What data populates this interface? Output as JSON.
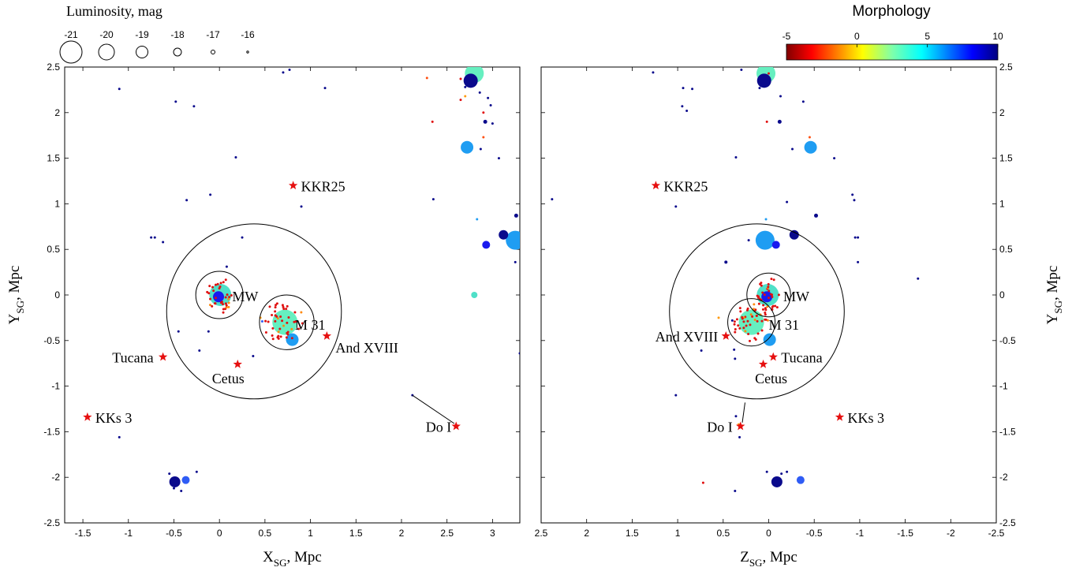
{
  "header": {
    "luminosity_title": "Luminosity, mag",
    "luminosity_legend": [
      "-21",
      "-20",
      "-19",
      "-18",
      "-17",
      "-16"
    ],
    "colorbar_title": "Morphology",
    "colorbar_ticks": [
      "-5",
      "0",
      "5",
      "10"
    ],
    "colorbar_range": [
      -5,
      10
    ]
  },
  "chart_data": [
    {
      "type": "scatter",
      "xlabel_main": "X",
      "xlabel_sub": "SG",
      "xlabel_unit": ", Mpc",
      "ylabel_main": "Y",
      "ylabel_sub": "SG",
      "ylabel_unit": ", Mpc",
      "xlim": [
        -1.7,
        3.3
      ],
      "ylim": [
        -2.5,
        2.5
      ],
      "xticks": [
        -1.5,
        -1,
        -0.5,
        0,
        0.5,
        1,
        1.5,
        2,
        2.5,
        3
      ],
      "xtick_labels": [
        "-1.5",
        "-1",
        "-0.5",
        "0",
        "0.5",
        "1",
        "1.5",
        "2",
        "2.5",
        "3"
      ],
      "yticks": [
        2.5,
        2,
        1.5,
        1,
        0.5,
        0,
        -0.5,
        -1,
        -1.5,
        -2,
        -2.5
      ],
      "ytick_labels": [
        "2.5",
        "2",
        "1.5",
        "1",
        "0.5",
        "0",
        "-0.5",
        "-1",
        "-1.5",
        "-2",
        "-2.5"
      ],
      "circles": [
        {
          "cx": 0.38,
          "cy": -0.18,
          "r": 0.96
        },
        {
          "cx": 0.0,
          "cy": 0.0,
          "r": 0.26
        },
        {
          "cx": 0.74,
          "cy": -0.3,
          "r": 0.3
        }
      ],
      "stars": [
        {
          "label": "KKR25",
          "x": 0.81,
          "y": 1.2
        },
        {
          "label": "Tucana",
          "x": -0.62,
          "y": -0.68
        },
        {
          "label": "Cetus",
          "x": 0.2,
          "y": -0.76
        },
        {
          "label": "And XVIII",
          "x": 1.18,
          "y": -0.45
        },
        {
          "label": "KKs 3",
          "x": -1.45,
          "y": -1.34
        },
        {
          "label": "Do I",
          "x": 2.6,
          "y": -1.44
        }
      ],
      "labels": [
        {
          "text": "MW",
          "x": 0.14,
          "y": -0.01
        },
        {
          "text": "M 31",
          "x": 0.83,
          "y": -0.32
        }
      ],
      "points": [
        {
          "x": 0.01,
          "y": 0.0,
          "m": 4,
          "size": 14
        },
        {
          "x": -0.01,
          "y": -0.02,
          "m": 9,
          "size": 7
        },
        {
          "x": 0.72,
          "y": -0.3,
          "m": 3,
          "size": 16
        },
        {
          "x": 0.8,
          "y": -0.49,
          "m": 7,
          "size": 8
        },
        {
          "x": 2.8,
          "y": 2.43,
          "m": 3,
          "size": 12
        },
        {
          "x": 2.76,
          "y": 2.35,
          "m": 10,
          "size": 9
        },
        {
          "x": 2.72,
          "y": 1.62,
          "m": 7,
          "size": 8
        },
        {
          "x": 3.25,
          "y": 0.6,
          "m": 7,
          "size": 12
        },
        {
          "x": 3.12,
          "y": 0.66,
          "m": 10,
          "size": 6
        },
        {
          "x": 2.93,
          "y": 0.55,
          "m": 9,
          "size": 5
        },
        {
          "x": 2.8,
          "y": 0.0,
          "m": 4,
          "size": 4
        },
        {
          "x": -0.49,
          "y": -2.05,
          "m": 10,
          "size": 7
        },
        {
          "x": -0.37,
          "y": -2.03,
          "m": 8,
          "size": 5
        },
        {
          "x": -1.1,
          "y": 2.26,
          "m": 10,
          "size": 1.5
        },
        {
          "x": -0.48,
          "y": 2.12,
          "m": 10,
          "size": 1.5
        },
        {
          "x": -0.28,
          "y": 2.07,
          "m": 10,
          "size": 1.5
        },
        {
          "x": 0.7,
          "y": 2.44,
          "m": 10,
          "size": 1.5
        },
        {
          "x": 0.77,
          "y": 2.47,
          "m": 10,
          "size": 1.5
        },
        {
          "x": 1.16,
          "y": 2.27,
          "m": 10,
          "size": 1.5
        },
        {
          "x": 0.18,
          "y": 1.51,
          "m": 10,
          "size": 1.5
        },
        {
          "x": -0.36,
          "y": 1.04,
          "m": 10,
          "size": 1.5
        },
        {
          "x": -0.1,
          "y": 1.1,
          "m": 10,
          "size": 1.5
        },
        {
          "x": 0.9,
          "y": 0.97,
          "m": 10,
          "size": 1.5
        },
        {
          "x": -0.75,
          "y": 0.63,
          "m": 10,
          "size": 1.5
        },
        {
          "x": -0.71,
          "y": 0.63,
          "m": 10,
          "size": 1.5
        },
        {
          "x": -0.62,
          "y": 0.58,
          "m": 10,
          "size": 1.5
        },
        {
          "x": 0.25,
          "y": 0.63,
          "m": 10,
          "size": 1.5
        },
        {
          "x": 0.08,
          "y": 0.31,
          "m": 10,
          "size": 1.5
        },
        {
          "x": -0.45,
          "y": -0.4,
          "m": 10,
          "size": 1.5
        },
        {
          "x": -0.12,
          "y": -0.4,
          "m": 10,
          "size": 1.5
        },
        {
          "x": -0.22,
          "y": -0.61,
          "m": 10,
          "size": 1.5
        },
        {
          "x": 0.37,
          "y": -0.67,
          "m": 10,
          "size": 1.5
        },
        {
          "x": 0.47,
          "y": -0.29,
          "m": 8,
          "size": 1.5
        },
        {
          "x": 0.45,
          "y": -0.25,
          "m": 0,
          "size": 1.5
        },
        {
          "x": -1.1,
          "y": -1.56,
          "m": 10,
          "size": 1.5
        },
        {
          "x": -0.55,
          "y": -1.96,
          "m": 10,
          "size": 1.5
        },
        {
          "x": -0.5,
          "y": -2.12,
          "m": 10,
          "size": 1.5
        },
        {
          "x": -0.42,
          "y": -2.15,
          "m": 10,
          "size": 1.5
        },
        {
          "x": -0.25,
          "y": -1.94,
          "m": 10,
          "size": 1.5
        },
        {
          "x": 2.12,
          "y": -1.1,
          "m": 10,
          "size": 1.5
        },
        {
          "x": 2.35,
          "y": 1.05,
          "m": 10,
          "size": 1.5
        },
        {
          "x": 2.28,
          "y": 2.38,
          "m": -2,
          "size": 1.5
        },
        {
          "x": 2.34,
          "y": 1.9,
          "m": -4,
          "size": 1.5
        },
        {
          "x": 2.65,
          "y": 2.37,
          "m": -4,
          "size": 1.5
        },
        {
          "x": 2.7,
          "y": 2.28,
          "m": 10,
          "size": 1.5
        },
        {
          "x": 2.65,
          "y": 2.14,
          "m": -4,
          "size": 1.5
        },
        {
          "x": 2.7,
          "y": 2.18,
          "m": 0,
          "size": 1.5
        },
        {
          "x": 2.86,
          "y": 2.22,
          "m": 10,
          "size": 1.5
        },
        {
          "x": 2.95,
          "y": 2.16,
          "m": 10,
          "size": 1.5
        },
        {
          "x": 2.98,
          "y": 2.08,
          "m": 10,
          "size": 1.5
        },
        {
          "x": 2.9,
          "y": 2.0,
          "m": -4,
          "size": 1.5
        },
        {
          "x": 2.92,
          "y": 1.9,
          "m": 10,
          "size": 2.5
        },
        {
          "x": 2.9,
          "y": 1.73,
          "m": -3,
          "size": 1.5
        },
        {
          "x": 3.0,
          "y": 1.88,
          "m": 10,
          "size": 1.5
        },
        {
          "x": 3.07,
          "y": 1.5,
          "m": 10,
          "size": 1.5
        },
        {
          "x": 2.87,
          "y": 1.6,
          "m": 10,
          "size": 1.5
        },
        {
          "x": 2.83,
          "y": 0.83,
          "m": 7,
          "size": 1.5
        },
        {
          "x": 3.26,
          "y": 0.87,
          "m": 10,
          "size": 2.5
        },
        {
          "x": 3.25,
          "y": 0.36,
          "m": 10,
          "size": 1.5
        },
        {
          "x": 3.3,
          "y": -0.64,
          "m": 10,
          "size": 1.5
        }
      ],
      "satellite_clusters": [
        {
          "cx": 0.0,
          "cy": 0.0,
          "rx": 0.16,
          "ry": 0.2,
          "count": 34,
          "m": -5
        },
        {
          "cx": 0.7,
          "cy": -0.3,
          "rx": 0.24,
          "ry": 0.22,
          "count": 44,
          "m": -5
        }
      ],
      "connectors": [
        {
          "x1": 2.12,
          "y1": -1.1,
          "x2": 2.58,
          "y2": -1.41
        }
      ]
    },
    {
      "type": "scatter",
      "xlabel_main": "Z",
      "xlabel_sub": "SG",
      "xlabel_unit": ", Mpc",
      "ylabel_main": "Y",
      "ylabel_sub": "SG",
      "ylabel_unit": ", Mpc",
      "xlim": [
        2.5,
        -2.5
      ],
      "ylim": [
        -2.5,
        2.5
      ],
      "xticks": [
        2.5,
        2,
        1.5,
        1,
        0.5,
        0,
        -0.5,
        -1,
        -1.5,
        -2,
        -2.5
      ],
      "xtick_labels": [
        "2.5",
        "2",
        "1.5",
        "1",
        "0.5",
        "0",
        "-0.5",
        "-1",
        "-1.5",
        "-2",
        "-2.5"
      ],
      "yticks": [
        2.5,
        2,
        1.5,
        1,
        0.5,
        0,
        -0.5,
        -1,
        -1.5,
        -2,
        -2.5
      ],
      "ytick_labels": [
        "2.5",
        "2",
        "1.5",
        "1",
        "0.5",
        "0",
        "-0.5",
        "-1",
        "-1.5",
        "-2",
        "-2.5"
      ],
      "circles": [
        {
          "cx": 0.13,
          "cy": -0.18,
          "r": 0.96
        },
        {
          "cx": 0.0,
          "cy": 0.0,
          "r": 0.24
        },
        {
          "cx": 0.19,
          "cy": -0.3,
          "r": 0.26
        }
      ],
      "stars": [
        {
          "label": "KKR25",
          "x": 1.24,
          "y": 1.2
        },
        {
          "label": "Tucana",
          "x": -0.05,
          "y": -0.68
        },
        {
          "label": "Cetus",
          "x": 0.06,
          "y": -0.76
        },
        {
          "label": "And XVIII",
          "x": 0.47,
          "y": -0.45
        },
        {
          "label": "KKs 3",
          "x": -0.78,
          "y": -1.34
        },
        {
          "label": "Do I",
          "x": 0.31,
          "y": -1.44
        }
      ],
      "labels": [
        {
          "text": "MW",
          "x": -0.16,
          "y": -0.01
        },
        {
          "text": "M 31",
          "x": 0.0,
          "y": -0.32
        }
      ],
      "points": [
        {
          "x": 0.01,
          "y": 0.0,
          "m": 4,
          "size": 14
        },
        {
          "x": 0.02,
          "y": -0.02,
          "m": 9,
          "size": 7
        },
        {
          "x": 0.19,
          "y": -0.3,
          "m": 3,
          "size": 16
        },
        {
          "x": -0.01,
          "y": -0.49,
          "m": 7,
          "size": 8
        },
        {
          "x": 0.03,
          "y": 2.43,
          "m": 3,
          "size": 12
        },
        {
          "x": 0.05,
          "y": 2.35,
          "m": 10,
          "size": 9
        },
        {
          "x": -0.46,
          "y": 1.62,
          "m": 7,
          "size": 8
        },
        {
          "x": 0.04,
          "y": 0.6,
          "m": 7,
          "size": 12
        },
        {
          "x": -0.28,
          "y": 0.66,
          "m": 10,
          "size": 6
        },
        {
          "x": -0.08,
          "y": 0.55,
          "m": 9,
          "size": 5
        },
        {
          "x": -0.09,
          "y": -2.05,
          "m": 10,
          "size": 7
        },
        {
          "x": -0.35,
          "y": -2.03,
          "m": 8,
          "size": 5
        },
        {
          "x": 1.27,
          "y": 2.44,
          "m": 10,
          "size": 1.5
        },
        {
          "x": 0.94,
          "y": 2.27,
          "m": 10,
          "size": 1.5
        },
        {
          "x": 0.84,
          "y": 2.26,
          "m": 10,
          "size": 1.5
        },
        {
          "x": 0.95,
          "y": 2.07,
          "m": 10,
          "size": 1.5
        },
        {
          "x": 0.9,
          "y": 2.02,
          "m": 10,
          "size": 1.5
        },
        {
          "x": 0.3,
          "y": 2.47,
          "m": 10,
          "size": 1.5
        },
        {
          "x": 0.1,
          "y": 2.27,
          "m": 10,
          "size": 1.5
        },
        {
          "x": 0.0,
          "y": 2.43,
          "m": -4,
          "size": 1.5
        },
        {
          "x": -0.13,
          "y": 2.18,
          "m": 10,
          "size": 1.5
        },
        {
          "x": -0.38,
          "y": 2.12,
          "m": 10,
          "size": 1.5
        },
        {
          "x": -0.12,
          "y": 1.9,
          "m": 10,
          "size": 2.5
        },
        {
          "x": 0.02,
          "y": 1.9,
          "m": -4,
          "size": 1.5
        },
        {
          "x": 0.36,
          "y": 1.51,
          "m": 10,
          "size": 1.5
        },
        {
          "x": -0.26,
          "y": 1.6,
          "m": 10,
          "size": 1.5
        },
        {
          "x": -0.45,
          "y": 1.73,
          "m": -3,
          "size": 1.5
        },
        {
          "x": -0.72,
          "y": 1.5,
          "m": 10,
          "size": 1.5
        },
        {
          "x": 2.38,
          "y": 1.05,
          "m": 10,
          "size": 1.5
        },
        {
          "x": 1.02,
          "y": 0.97,
          "m": 10,
          "size": 1.5
        },
        {
          "x": 0.03,
          "y": 0.83,
          "m": 7,
          "size": 1.5
        },
        {
          "x": -0.2,
          "y": 1.02,
          "m": 10,
          "size": 1.5
        },
        {
          "x": -0.52,
          "y": 0.87,
          "m": 10,
          "size": 2.5
        },
        {
          "x": -0.92,
          "y": 1.1,
          "m": 10,
          "size": 1.5
        },
        {
          "x": -0.94,
          "y": 1.04,
          "m": 10,
          "size": 1.5
        },
        {
          "x": -0.98,
          "y": 0.63,
          "m": 10,
          "size": 1.5
        },
        {
          "x": -0.95,
          "y": 0.63,
          "m": 10,
          "size": 1.5
        },
        {
          "x": 0.47,
          "y": 0.36,
          "m": 10,
          "size": 2
        },
        {
          "x": 0.22,
          "y": 0.6,
          "m": 10,
          "size": 1.5
        },
        {
          "x": -0.98,
          "y": 0.36,
          "m": 10,
          "size": 1.5
        },
        {
          "x": -1.64,
          "y": 0.18,
          "m": 10,
          "size": 1.5
        },
        {
          "x": 0.4,
          "y": -0.28,
          "m": 10,
          "size": 1.5
        },
        {
          "x": 0.38,
          "y": -0.6,
          "m": 10,
          "size": 1.5
        },
        {
          "x": 0.74,
          "y": -0.61,
          "m": 10,
          "size": 1.5
        },
        {
          "x": 0.37,
          "y": -0.7,
          "m": 10,
          "size": 1.5
        },
        {
          "x": 0.55,
          "y": -0.25,
          "m": 0,
          "size": 1.5
        },
        {
          "x": 1.02,
          "y": -1.1,
          "m": 10,
          "size": 1.5
        },
        {
          "x": 0.33,
          "y": -1.42,
          "m": 0,
          "size": 1.5
        },
        {
          "x": 0.32,
          "y": -1.56,
          "m": 10,
          "size": 1.5
        },
        {
          "x": 0.36,
          "y": -1.33,
          "m": 10,
          "size": 1.5
        },
        {
          "x": 0.72,
          "y": -2.06,
          "m": -4,
          "size": 1.5
        },
        {
          "x": 0.37,
          "y": -2.15,
          "m": 10,
          "size": 1.5
        },
        {
          "x": 0.02,
          "y": -1.94,
          "m": 10,
          "size": 1.5
        },
        {
          "x": -0.2,
          "y": -1.94,
          "m": 10,
          "size": 1.5
        },
        {
          "x": -0.14,
          "y": -1.96,
          "m": 10,
          "size": 1.5
        }
      ],
      "satellite_clusters": [
        {
          "cx": 0.0,
          "cy": 0.0,
          "rx": 0.14,
          "ry": 0.2,
          "count": 34,
          "m": -5
        },
        {
          "cx": 0.2,
          "cy": -0.3,
          "rx": 0.2,
          "ry": 0.22,
          "count": 44,
          "m": -5
        }
      ],
      "connectors": [
        {
          "x1": 0.26,
          "y1": -1.18,
          "x2": 0.29,
          "y2": -1.4
        }
      ]
    }
  ]
}
